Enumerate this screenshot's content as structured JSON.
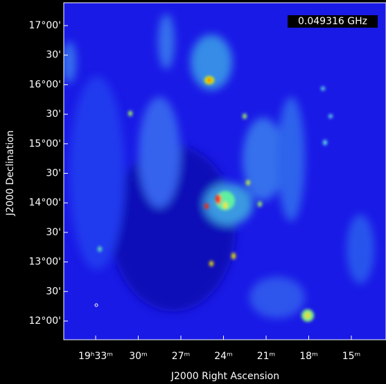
{
  "image": {
    "frequency_label": "0.049316 GHz",
    "y_axis_label": "J2000 Declination",
    "x_axis_label": "J2000 Right Ascension",
    "y_ticks": [
      "17°00'",
      "30'",
      "16°00'",
      "30'",
      "15°00'",
      "30'",
      "14°00'",
      "30'",
      "13°00'",
      "30'",
      "12°00'"
    ],
    "x_ticks": [
      "19ʰ33ᵐ",
      "30ᵐ",
      "27ᵐ",
      "24ᵐ",
      "21ᵐ",
      "18ᵐ",
      "15ᵐ"
    ]
  }
}
